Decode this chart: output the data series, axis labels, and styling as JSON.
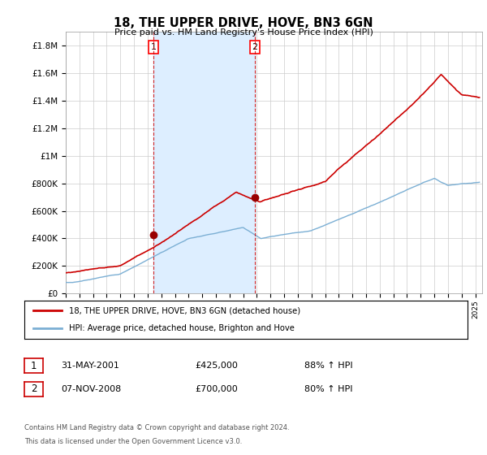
{
  "title": "18, THE UPPER DRIVE, HOVE, BN3 6GN",
  "subtitle": "Price paid vs. HM Land Registry's House Price Index (HPI)",
  "ylabel_ticks": [
    "£0",
    "£200K",
    "£400K",
    "£600K",
    "£800K",
    "£1M",
    "£1.2M",
    "£1.4M",
    "£1.6M",
    "£1.8M"
  ],
  "ytick_values": [
    0,
    200000,
    400000,
    600000,
    800000,
    1000000,
    1200000,
    1400000,
    1600000,
    1800000
  ],
  "ylim": [
    0,
    1900000
  ],
  "xlim_start": 1995.0,
  "xlim_end": 2025.5,
  "transaction1": {
    "date_x": 2001.42,
    "price": 425000,
    "label": "1"
  },
  "transaction2": {
    "date_x": 2008.85,
    "price": 700000,
    "label": "2"
  },
  "legend_line1": "18, THE UPPER DRIVE, HOVE, BN3 6GN (detached house)",
  "legend_line2": "HPI: Average price, detached house, Brighton and Hove",
  "table_row1": [
    "1",
    "31-MAY-2001",
    "£425,000",
    "88% ↑ HPI"
  ],
  "table_row2": [
    "2",
    "07-NOV-2008",
    "£700,000",
    "80% ↑ HPI"
  ],
  "footer1": "Contains HM Land Registry data © Crown copyright and database right 2024.",
  "footer2": "This data is licensed under the Open Government Licence v3.0.",
  "line_color_property": "#cc0000",
  "line_color_hpi": "#7bafd4",
  "fill_color_between_vlines": "#ddeeff",
  "plot_bg_color": "#ffffff",
  "grid_color": "#cccccc",
  "vline_color": "#cc0000",
  "marker_color_property": "#990000"
}
